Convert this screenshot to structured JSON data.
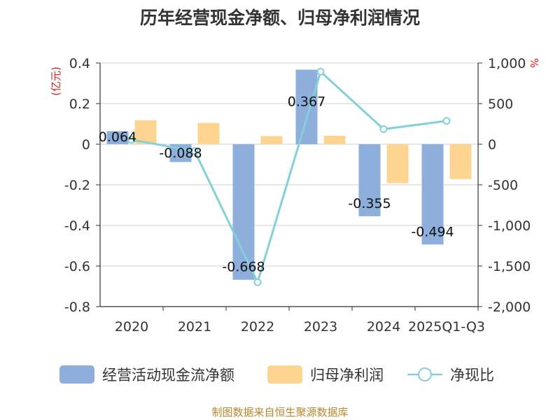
{
  "chart_data": {
    "type": "bar+line",
    "title": "历年经营现金净额、归母净利润情况",
    "categories": [
      "2020",
      "2021",
      "2022",
      "2023",
      "2024",
      "2025Q1-Q3"
    ],
    "left_axis": {
      "label": "(亿元)",
      "min": -0.8,
      "max": 0.4,
      "ticks": [
        "0.4",
        "0.2",
        "0",
        "-0.2",
        "-0.4",
        "-0.6",
        "-0.8"
      ]
    },
    "right_axis": {
      "label": "%",
      "min": -2000,
      "max": 1000,
      "ticks": [
        "1,000",
        "500",
        "0",
        "-500",
        "-1,000",
        "-1,500",
        "-2,000"
      ]
    },
    "series": [
      {
        "name": "经营活动现金流净额",
        "type": "bar",
        "axis": "left",
        "color": "#8eaedc",
        "values": [
          0.064,
          -0.088,
          -0.668,
          0.367,
          -0.355,
          -0.494
        ],
        "labels": [
          "0.064",
          "-0.088",
          "-0.668",
          "0.367",
          "-0.355",
          "-0.494"
        ]
      },
      {
        "name": "归母净利润",
        "type": "bar",
        "axis": "left",
        "color": "#fdd591",
        "values": [
          0.118,
          0.105,
          0.04,
          0.042,
          -0.192,
          -0.172
        ]
      },
      {
        "name": "净现比",
        "type": "line",
        "axis": "right",
        "color": "#84d0d9",
        "values": [
          54,
          -84,
          -1700,
          893,
          185,
          287
        ]
      }
    ],
    "legend_position": "bottom",
    "grid": true
  },
  "footer": {
    "source": "制图数据来自恒生聚源数据库"
  }
}
